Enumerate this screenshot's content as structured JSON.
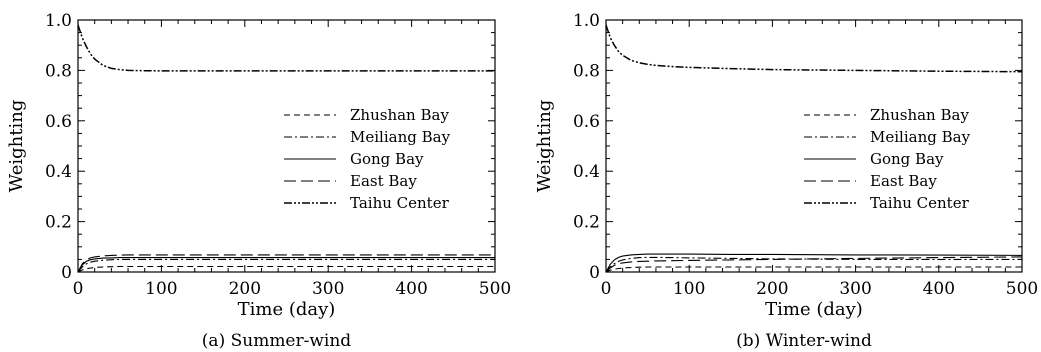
{
  "chart_data": [
    {
      "type": "line",
      "caption": "(a) Summer-wind",
      "xlabel": "Time (day)",
      "ylabel": "Weighting",
      "xlim": [
        0,
        500
      ],
      "ylim": [
        0,
        1.0
      ],
      "xticks": [
        0,
        100,
        200,
        300,
        400,
        500
      ],
      "yticks": [
        "0",
        "0.2",
        "0.4",
        "0.6",
        "0.8",
        "1.0"
      ],
      "grid": false,
      "legend_position": "right",
      "x": [
        0,
        5,
        10,
        15,
        20,
        30,
        40,
        50,
        60,
        80,
        100,
        150,
        200,
        300,
        400,
        500
      ],
      "series": [
        {
          "name": "Zhushan Bay",
          "style": "dashed",
          "values": [
            0.0,
            0.008,
            0.013,
            0.016,
            0.018,
            0.02,
            0.021,
            0.022,
            0.022,
            0.022,
            0.022,
            0.022,
            0.022,
            0.022,
            0.022,
            0.022
          ]
        },
        {
          "name": "Meiliang Bay",
          "style": "dashdot",
          "values": [
            0.0,
            0.02,
            0.032,
            0.039,
            0.043,
            0.047,
            0.049,
            0.05,
            0.05,
            0.05,
            0.05,
            0.05,
            0.05,
            0.05,
            0.05,
            0.05
          ]
        },
        {
          "name": "Gong Bay",
          "style": "solid",
          "values": [
            0.0,
            0.028,
            0.042,
            0.049,
            0.052,
            0.055,
            0.056,
            0.057,
            0.057,
            0.057,
            0.057,
            0.057,
            0.057,
            0.057,
            0.057,
            0.057
          ]
        },
        {
          "name": "East Bay",
          "style": "longdash",
          "values": [
            0.0,
            0.032,
            0.048,
            0.056,
            0.06,
            0.064,
            0.066,
            0.067,
            0.068,
            0.068,
            0.068,
            0.068,
            0.068,
            0.068,
            0.068,
            0.068
          ]
        },
        {
          "name": "Taihu Center",
          "style": "dashdotdot",
          "values": [
            0.98,
            0.93,
            0.895,
            0.865,
            0.845,
            0.82,
            0.808,
            0.803,
            0.8,
            0.799,
            0.798,
            0.798,
            0.798,
            0.798,
            0.798,
            0.798
          ]
        }
      ]
    },
    {
      "type": "line",
      "caption": "(b) Winter-wind",
      "xlabel": "Time (day)",
      "ylabel": "Weighting",
      "xlim": [
        0,
        500
      ],
      "ylim": [
        0,
        1.0
      ],
      "xticks": [
        0,
        100,
        200,
        300,
        400,
        500
      ],
      "yticks": [
        "0",
        "0.2",
        "0.4",
        "0.6",
        "0.8",
        "1.0"
      ],
      "grid": false,
      "legend_position": "right",
      "x": [
        0,
        5,
        10,
        15,
        20,
        30,
        40,
        50,
        60,
        80,
        100,
        150,
        200,
        300,
        400,
        500
      ],
      "series": [
        {
          "name": "Zhushan Bay",
          "style": "dashed",
          "values": [
            0.0,
            0.007,
            0.011,
            0.014,
            0.016,
            0.018,
            0.019,
            0.02,
            0.02,
            0.02,
            0.02,
            0.02,
            0.02,
            0.02,
            0.02,
            0.02
          ]
        },
        {
          "name": "Meiliang Bay",
          "style": "dashdot",
          "values": [
            0.0,
            0.02,
            0.033,
            0.042,
            0.048,
            0.054,
            0.057,
            0.058,
            0.058,
            0.057,
            0.056,
            0.054,
            0.052,
            0.05,
            0.05,
            0.05
          ]
        },
        {
          "name": "Gong Bay",
          "style": "solid",
          "values": [
            0.0,
            0.03,
            0.048,
            0.058,
            0.063,
            0.068,
            0.07,
            0.071,
            0.071,
            0.071,
            0.071,
            0.07,
            0.07,
            0.068,
            0.067,
            0.066
          ]
        },
        {
          "name": "East Bay",
          "style": "longdash",
          "values": [
            0.0,
            0.016,
            0.026,
            0.032,
            0.036,
            0.04,
            0.042,
            0.043,
            0.044,
            0.045,
            0.046,
            0.048,
            0.05,
            0.054,
            0.057,
            0.06
          ]
        },
        {
          "name": "Taihu Center",
          "style": "dashdotdot",
          "values": [
            0.98,
            0.93,
            0.9,
            0.875,
            0.86,
            0.84,
            0.83,
            0.824,
            0.82,
            0.815,
            0.812,
            0.807,
            0.803,
            0.8,
            0.797,
            0.795
          ]
        }
      ]
    }
  ]
}
